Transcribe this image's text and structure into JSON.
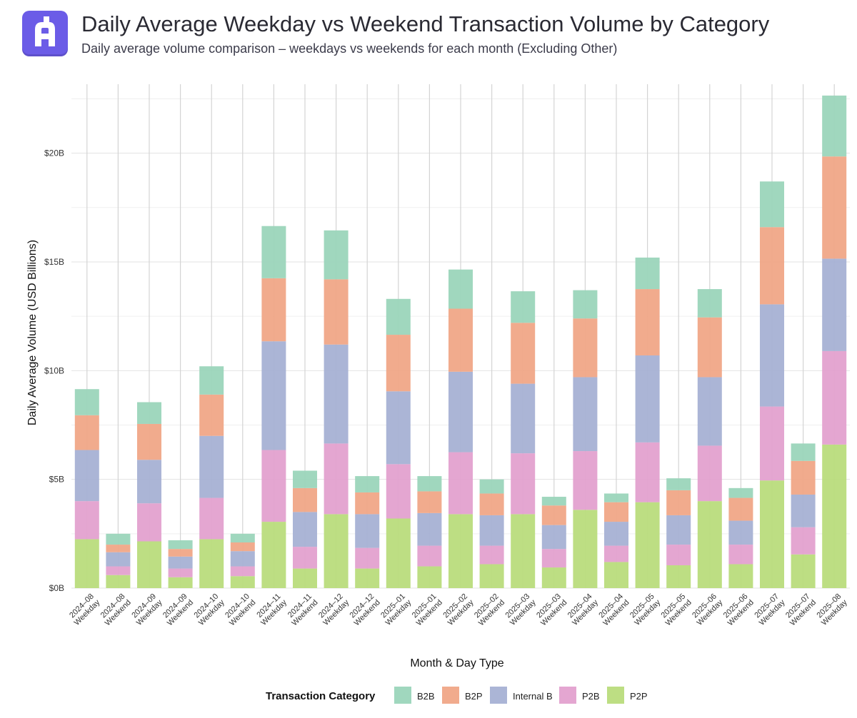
{
  "header": {
    "logo": {
      "icon": "brand-logo-icon",
      "color": "#6b5ce7"
    },
    "title": "Daily Average Weekday vs Weekend Transaction Volume by Category",
    "subtitle": "Daily average volume comparison – weekdays vs weekends for each month (Excluding Other)"
  },
  "chart_data": {
    "type": "bar",
    "stacked": true,
    "title": "Daily Average Weekday vs Weekend Transaction Volume by Category",
    "subtitle": "Daily average volume comparison – weekdays vs weekends for each month (Excluding Other)",
    "xlabel": "Month & Day Type",
    "ylabel": "Daily Average Volume (USD Billions)",
    "ylim": [
      0,
      23.5
    ],
    "y_ticks": [
      {
        "value": 0,
        "label": "$0B"
      },
      {
        "value": 5,
        "label": "$5B"
      },
      {
        "value": 10,
        "label": "$10B"
      },
      {
        "value": 15,
        "label": "$15B"
      },
      {
        "value": 20,
        "label": "$20B"
      }
    ],
    "grid": true,
    "legend": {
      "title": "Transaction Category",
      "position": "bottom"
    },
    "categories": [
      {
        "month": "2024–08",
        "day": "Weekday"
      },
      {
        "month": "2024–08",
        "day": "Weekend"
      },
      {
        "month": "2024–09",
        "day": "Weekday"
      },
      {
        "month": "2024–09",
        "day": "Weekend"
      },
      {
        "month": "2024–10",
        "day": "Weekday"
      },
      {
        "month": "2024–10",
        "day": "Weekend"
      },
      {
        "month": "2024–11",
        "day": "Weekday"
      },
      {
        "month": "2024–11",
        "day": "Weekend"
      },
      {
        "month": "2024–12",
        "day": "Weekday"
      },
      {
        "month": "2024–12",
        "day": "Weekend"
      },
      {
        "month": "2025–01",
        "day": "Weekday"
      },
      {
        "month": "2025–01",
        "day": "Weekend"
      },
      {
        "month": "2025–02",
        "day": "Weekday"
      },
      {
        "month": "2025–02",
        "day": "Weekend"
      },
      {
        "month": "2025–03",
        "day": "Weekday"
      },
      {
        "month": "2025–03",
        "day": "Weekend"
      },
      {
        "month": "2025–04",
        "day": "Weekday"
      },
      {
        "month": "2025–04",
        "day": "Weekend"
      },
      {
        "month": "2025–05",
        "day": "Weekday"
      },
      {
        "month": "2025–05",
        "day": "Weekend"
      },
      {
        "month": "2025–06",
        "day": "Weekday"
      },
      {
        "month": "2025–06",
        "day": "Weekend"
      },
      {
        "month": "2025–07",
        "day": "Weekday"
      },
      {
        "month": "2025–07",
        "day": "Weekend"
      },
      {
        "month": "2025–08",
        "day": "Weekday"
      }
    ],
    "series": [
      {
        "name": "P2P",
        "color": "#b9dc7c",
        "values": [
          2.25,
          0.6,
          2.15,
          0.5,
          2.25,
          0.55,
          3.05,
          0.9,
          3.4,
          0.9,
          3.2,
          1.0,
          3.4,
          1.1,
          3.4,
          0.95,
          3.6,
          1.2,
          3.95,
          1.05,
          4.0,
          1.1,
          4.95,
          1.55,
          6.6
        ]
      },
      {
        "name": "P2B",
        "color": "#e3a1cf",
        "values": [
          1.75,
          0.4,
          1.75,
          0.4,
          1.9,
          0.45,
          3.3,
          1.0,
          3.25,
          0.95,
          2.5,
          0.95,
          2.85,
          0.85,
          2.8,
          0.85,
          2.7,
          0.75,
          2.75,
          0.95,
          2.55,
          0.9,
          3.4,
          1.25,
          4.3
        ]
      },
      {
        "name": "Internal B",
        "color": "#a7b1d4",
        "values": [
          2.35,
          0.65,
          2.0,
          0.55,
          2.85,
          0.7,
          5.0,
          1.6,
          4.55,
          1.55,
          3.35,
          1.5,
          3.7,
          1.4,
          3.2,
          1.1,
          3.4,
          1.1,
          4.0,
          1.35,
          3.15,
          1.1,
          4.7,
          1.5,
          4.25
        ]
      },
      {
        "name": "B2P",
        "color": "#f0a687",
        "values": [
          1.6,
          0.35,
          1.65,
          0.35,
          1.9,
          0.4,
          2.9,
          1.1,
          3.0,
          1.0,
          2.6,
          1.0,
          2.9,
          1.0,
          2.8,
          0.9,
          2.7,
          0.9,
          3.05,
          1.15,
          2.75,
          1.05,
          3.55,
          1.55,
          4.7
        ]
      },
      {
        "name": "B2B",
        "color": "#9bd5bb",
        "values": [
          1.2,
          0.5,
          1.0,
          0.4,
          1.3,
          0.4,
          2.4,
          0.8,
          2.25,
          0.75,
          1.65,
          0.7,
          1.8,
          0.65,
          1.45,
          0.4,
          1.3,
          0.4,
          1.45,
          0.55,
          1.3,
          0.45,
          2.1,
          0.8,
          2.8
        ]
      }
    ],
    "legend_order": [
      "B2B",
      "B2P",
      "Internal B",
      "P2B",
      "P2P"
    ]
  }
}
